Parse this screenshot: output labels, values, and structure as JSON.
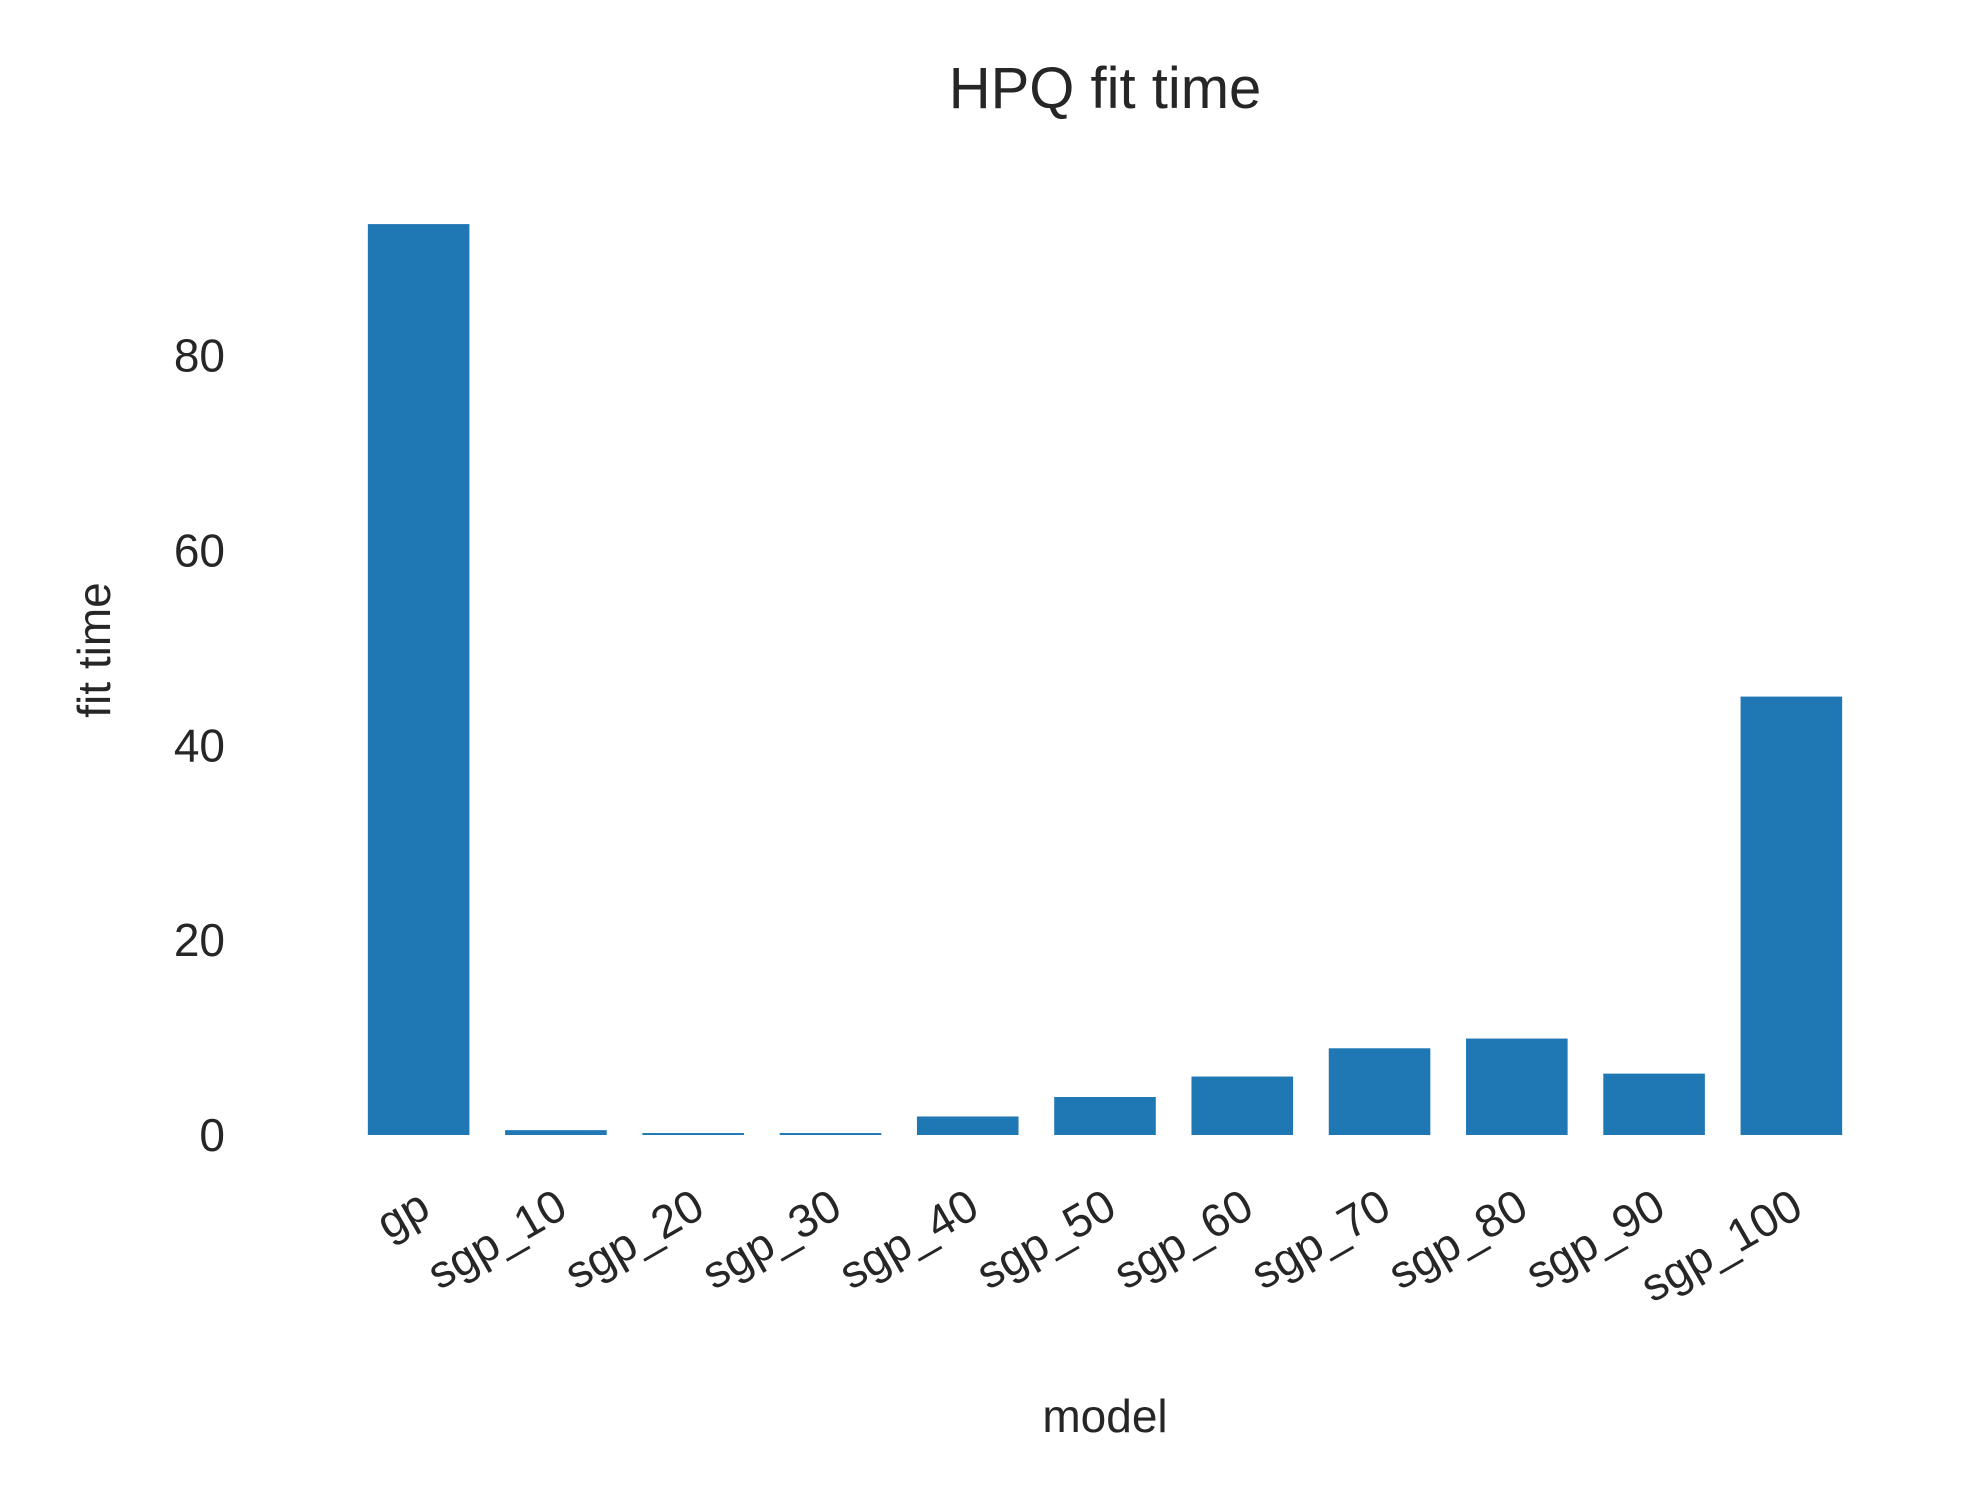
{
  "chart_data": {
    "type": "bar",
    "title": "HPQ fit time",
    "xlabel": "model",
    "ylabel": "fit time",
    "categories": [
      "gp",
      "sgp_10",
      "sgp_20",
      "sgp_30",
      "sgp_40",
      "sgp_50",
      "sgp_60",
      "sgp_70",
      "sgp_80",
      "sgp_90",
      "sgp_100"
    ],
    "values": [
      93.5,
      0.5,
      0.2,
      0.2,
      1.9,
      3.9,
      6.0,
      8.9,
      9.9,
      6.3,
      45.0
    ],
    "ylim": [
      0,
      97
    ],
    "yticks": [
      0,
      20,
      40,
      60,
      80
    ],
    "grid": false,
    "legend": "none",
    "bar_color": "#1f77b4"
  }
}
